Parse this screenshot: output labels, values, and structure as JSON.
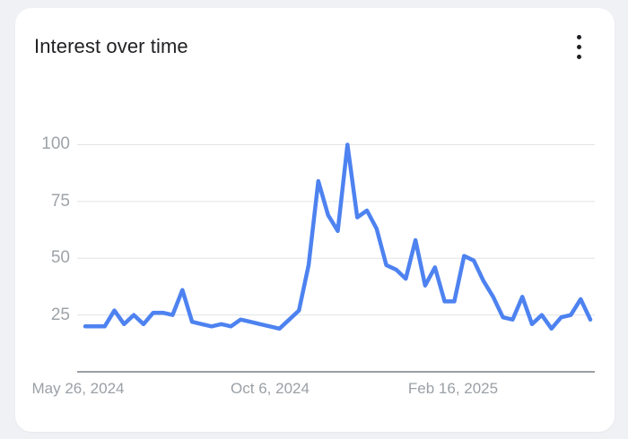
{
  "card": {
    "title": "Interest over time",
    "menu_icon": "three-dot-vertical-menu"
  },
  "colors": {
    "page_background": "#f0f1f5",
    "card_background": "#ffffff",
    "line": "#4d82f0",
    "gridline": "#e0e3e7",
    "axis_baseline": "#9aa0a6",
    "tick_label": "#9aa0a6",
    "title_text": "#202124"
  },
  "chart_data": {
    "type": "line",
    "title": "Interest over time",
    "series_name": "Interest",
    "frequency": "weekly",
    "x_start_label": "May 26, 2024",
    "xticks": [
      {
        "label": "May 26, 2024",
        "week_index": 0
      },
      {
        "label": "Oct 6, 2024",
        "week_index": 19
      },
      {
        "label": "Feb 16, 2025",
        "week_index": 38
      }
    ],
    "ytick_labels": [
      "100",
      "75",
      "50",
      "25"
    ],
    "ytick_values": [
      100,
      75,
      50,
      25
    ],
    "ylim": [
      0,
      100
    ],
    "grid": true,
    "legend": false,
    "line_color": "#4d82f0",
    "values": [
      20,
      20,
      20,
      27,
      21,
      25,
      21,
      26,
      26,
      25,
      36,
      22,
      21,
      20,
      21,
      20,
      23,
      22,
      21,
      20,
      19,
      23,
      27,
      47,
      84,
      69,
      62,
      100,
      68,
      71,
      63,
      47,
      45,
      41,
      58,
      38,
      46,
      31,
      31,
      51,
      49,
      40,
      33,
      24,
      23,
      33,
      21,
      25,
      19,
      24,
      25,
      32,
      23
    ]
  }
}
